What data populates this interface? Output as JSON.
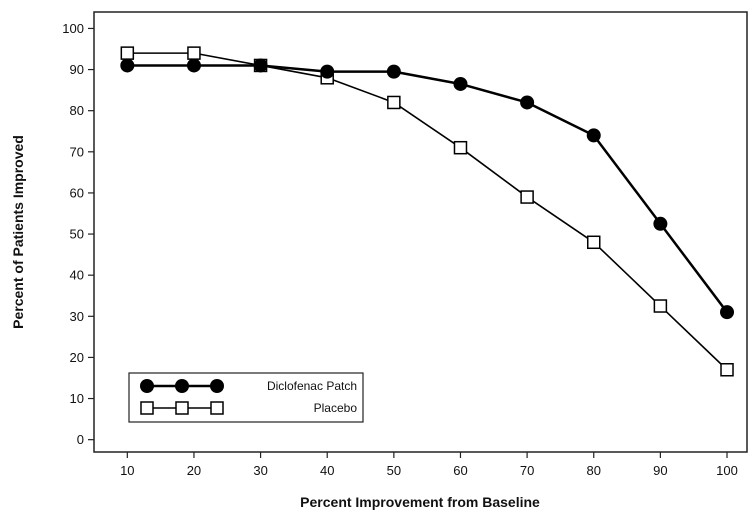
{
  "chart_data": {
    "type": "line",
    "xlabel": "Percent Improvement from Baseline",
    "ylabel": "Percent of Patients Improved",
    "x": [
      10,
      20,
      30,
      40,
      50,
      60,
      70,
      80,
      90,
      100
    ],
    "xlim": [
      5,
      103
    ],
    "ylim": [
      -3,
      104
    ],
    "xticks": [
      10,
      20,
      30,
      40,
      50,
      60,
      70,
      80,
      90,
      100
    ],
    "yticks": [
      0,
      10,
      20,
      30,
      40,
      50,
      60,
      70,
      80,
      90,
      100
    ],
    "xtick_labels": [
      "10",
      "20",
      "30",
      "40",
      "50",
      "60",
      "70",
      "80",
      "90",
      "100"
    ],
    "ytick_labels": [
      "0",
      "10",
      "20",
      "30",
      "40",
      "50",
      "60",
      "70",
      "80",
      "90",
      "100"
    ],
    "grid": false,
    "legend_position": "bottom-left",
    "series": [
      {
        "name": "Diclofenac Patch",
        "marker": "filled-circle",
        "color": "#000000",
        "values": [
          91,
          91,
          91,
          89.5,
          89.5,
          86.5,
          82,
          74,
          52.5,
          31
        ]
      },
      {
        "name": "Placebo",
        "marker": "open-square",
        "color": "#000000",
        "values": [
          94,
          94,
          91,
          88,
          82,
          71,
          59,
          48,
          32.5,
          17
        ]
      }
    ]
  }
}
